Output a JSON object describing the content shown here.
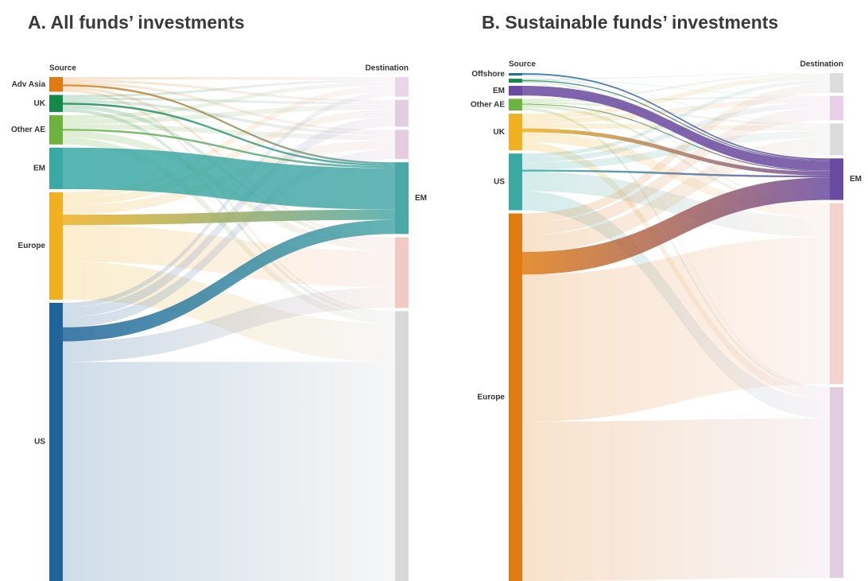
{
  "chart_data": [
    {
      "type": "sankey",
      "title": "A.   All funds’ investments",
      "source_label": "Source",
      "destination_label": "Destination",
      "highlight": 3,
      "sources": [
        {
          "name": "Adv Asia",
          "color": "#e07b12",
          "value": 3
        },
        {
          "name": "UK",
          "color": "#138a4a",
          "value": 3.5
        },
        {
          "name": "Other AE",
          "color": "#6db33f",
          "value": 6
        },
        {
          "name": "EM",
          "color": "#3aa9a4",
          "value": 8.5
        },
        {
          "name": "Europe",
          "color": "#f0b020",
          "value": 22
        },
        {
          "name": "US",
          "color": "#20649a",
          "value": 57
        }
      ],
      "destinations": [
        {
          "name": null,
          "color": "#e8d7e8"
        },
        {
          "name": null,
          "color": "#e0cfe0"
        },
        {
          "name": null,
          "color": "#e5cce0"
        },
        {
          "name": "EM",
          "color": "#4aa8a8"
        },
        {
          "name": null,
          "color": "#f3c9c4"
        },
        {
          "name": null,
          "color": "#d9d9d9"
        }
      ],
      "flows": [
        [
          0.5,
          0.5,
          0.5,
          0.4,
          0.6,
          0.5
        ],
        [
          0.5,
          0.5,
          0.6,
          0.4,
          0.8,
          0.7
        ],
        [
          0.8,
          1,
          1,
          0.4,
          1.4,
          1.4
        ],
        [
          0,
          0,
          0,
          8.5,
          0,
          0
        ],
        [
          1.2,
          1.5,
          1.9,
          2.1,
          7.5,
          7.8
        ],
        [
          1,
          2,
          2,
          2.9,
          4.2,
          44.9
        ]
      ]
    },
    {
      "type": "sankey",
      "title": "B. Sustainable funds’ investments",
      "source_label": "Source",
      "destination_label": "Destination",
      "highlight": 3,
      "sources": [
        {
          "name": "Offshore",
          "color": "#1e6fa0",
          "value": 0.5
        },
        {
          "name": null,
          "color": "#138a4a",
          "value": 0.8
        },
        {
          "name": "EM",
          "color": "#6a4aa0",
          "value": 2
        },
        {
          "name": "Other AE",
          "color": "#6db33f",
          "value": 2.4
        },
        {
          "name": "UK",
          "color": "#f0b020",
          "value": 7.5
        },
        {
          "name": "US",
          "color": "#3aa9a4",
          "value": 11.6
        },
        {
          "name": "Europe",
          "color": "#e07b12",
          "value": 75.2
        }
      ],
      "destinations": [
        {
          "name": null,
          "color": "#dddddd"
        },
        {
          "name": null,
          "color": "#e8d0e8"
        },
        {
          "name": null,
          "color": "#dcdcdc"
        },
        {
          "name": "EM",
          "color": "#6a4aa0"
        },
        {
          "name": null,
          "color": "#f5d3cc"
        },
        {
          "name": null,
          "color": "#e2cce0"
        }
      ],
      "flows": [
        [
          0,
          0,
          0,
          0.3,
          0.1,
          0.1
        ],
        [
          0.1,
          0.1,
          0.1,
          0.2,
          0.2,
          0.1
        ],
        [
          0,
          0,
          0,
          2,
          0,
          0
        ],
        [
          0.3,
          0.3,
          0.4,
          0.2,
          0.6,
          0.6
        ],
        [
          1,
          1,
          1,
          0.8,
          2,
          1.7
        ],
        [
          0.8,
          1,
          1.5,
          0.4,
          4,
          3.9
        ],
        [
          1.8,
          2.6,
          3.5,
          4.6,
          30.1,
          32.6
        ]
      ]
    }
  ]
}
